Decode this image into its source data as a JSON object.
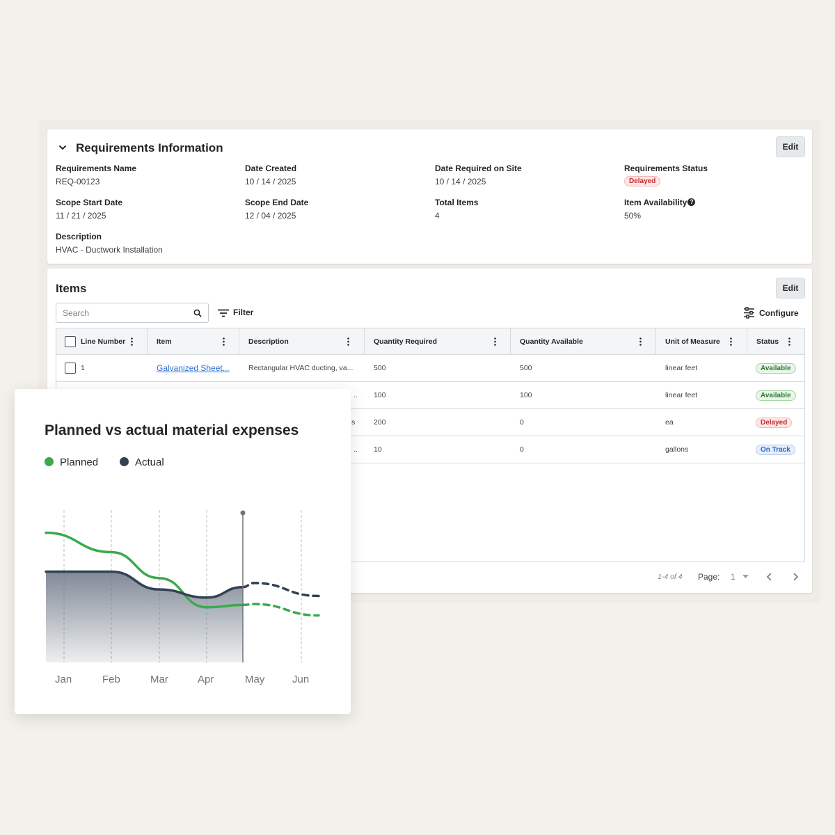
{
  "requirements": {
    "title": "Requirements Information",
    "edit_label": "Edit",
    "fields": {
      "name": {
        "label": "Requirements Name",
        "value": "REQ-00123"
      },
      "date_created": {
        "label": "Date Created",
        "value": "10 / 14 / 2025"
      },
      "date_required": {
        "label": "Date Required on Site",
        "value": "10 / 14 / 2025"
      },
      "status": {
        "label": "Requirements Status",
        "value": "Delayed"
      },
      "scope_start": {
        "label": "Scope Start Date",
        "value": "11 / 21 / 2025"
      },
      "scope_end": {
        "label": "Scope End Date",
        "value": "12 / 04 / 2025"
      },
      "total_items": {
        "label": "Total Items",
        "value": "4"
      },
      "availability": {
        "label": "Item Availability",
        "value": "50%"
      },
      "description": {
        "label": "Description",
        "value": "HVAC - Ductwork Installation"
      }
    }
  },
  "items": {
    "title": "Items",
    "edit_label": "Edit",
    "search_placeholder": "Search",
    "filter_label": "Filter",
    "configure_label": "Configure",
    "columns": [
      "Line Number",
      "Item",
      "Description",
      "Quantity Required",
      "Quantity Available",
      "Unit of Measure",
      "Status"
    ],
    "rows": [
      {
        "line": "1",
        "item": "Galvanized Sheet...",
        "description": "Rectangular HVAC ducting, va...",
        "qty_required": "500",
        "qty_available": "500",
        "unit": "linear feet",
        "status": "Available"
      },
      {
        "line": "",
        "item": "",
        "description": "..",
        "qty_required": "100",
        "qty_available": "100",
        "unit": "linear feet",
        "status": "Available"
      },
      {
        "line": "",
        "item": "",
        "description": "s",
        "qty_required": "200",
        "qty_available": "0",
        "unit": "ea",
        "status": "Delayed"
      },
      {
        "line": "",
        "item": "",
        "description": "..",
        "qty_required": "10",
        "qty_available": "0",
        "unit": "gallons",
        "status": "On Track"
      }
    ],
    "pager": {
      "range": "1-4 of 4",
      "page_label": "Page:",
      "page_value": "1"
    }
  },
  "status_colors": {
    "available": "#2e7d32",
    "delayed": "#c62d2d",
    "on_track": "#2967b8"
  },
  "icons": [
    "chevron-down-icon",
    "search-icon",
    "filter-icon",
    "configure-icon",
    "kebab-icon",
    "help-icon",
    "chevron-left-icon",
    "chevron-right-icon"
  ],
  "chart_data": {
    "type": "line",
    "title": "Planned vs actual material expenses",
    "categories": [
      "Jan",
      "Feb",
      "Mar",
      "Apr",
      "May",
      "Jun"
    ],
    "series": [
      {
        "name": "Planned",
        "color": "#3aaa4a",
        "values": [
          0.8,
          0.68,
          0.52,
          0.34,
          0.36,
          0.29
        ],
        "forecast_from": "May"
      },
      {
        "name": "Actual",
        "color": "#334155",
        "values": [
          0.56,
          0.56,
          0.45,
          0.4,
          0.49,
          0.41
        ],
        "forecast_from": "May"
      }
    ],
    "today_marker": "May",
    "ylim": [
      0,
      1
    ],
    "grid": "vertical dashed",
    "legend": "top-left"
  }
}
